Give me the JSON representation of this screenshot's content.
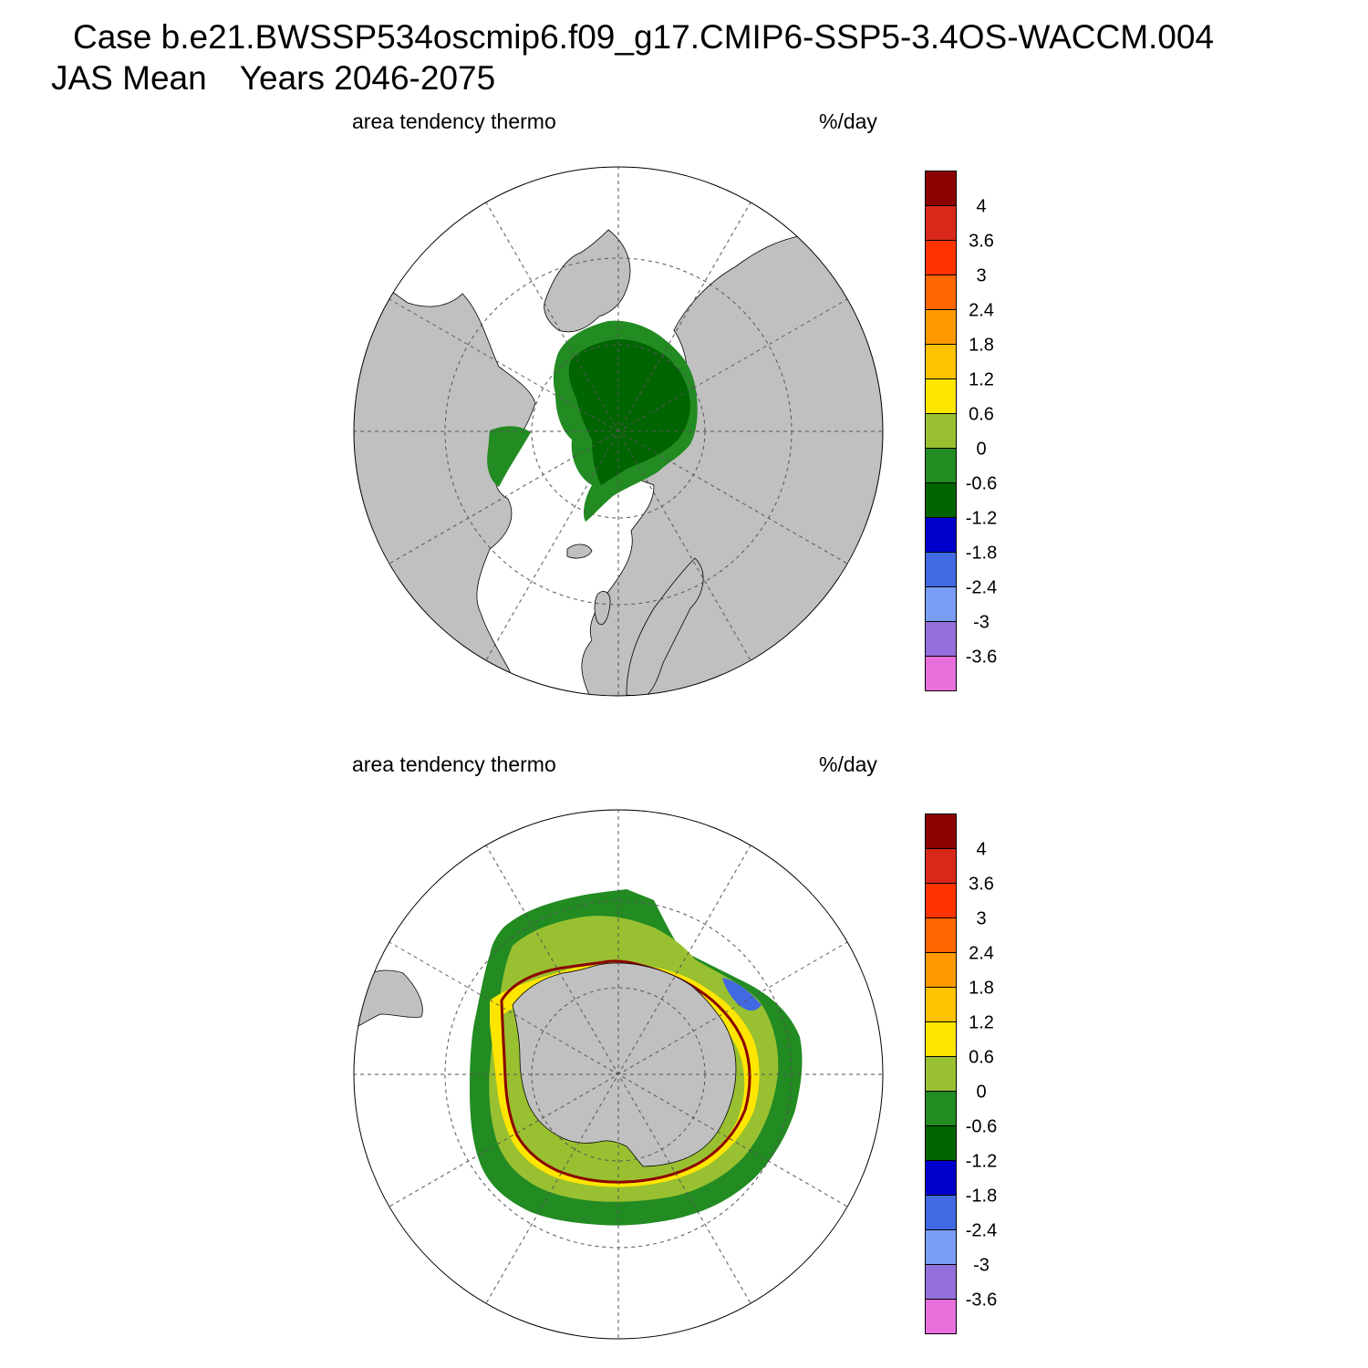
{
  "header": {
    "case_line": "Case b.e21.BWSSP534oscmip6.f09_g17.CMIP6-SSP5-3.4OS-WACCM.004",
    "period": "JAS Mean",
    "years": "Years 2046-2075"
  },
  "panels": [
    {
      "id": "north",
      "hemisphere": "Arctic (north polar stereographic)",
      "variable_label": "area tendency thermo",
      "units_label": "%/day"
    },
    {
      "id": "south",
      "hemisphere": "Antarctic (south polar stereographic)",
      "variable_label": "area tendency thermo",
      "units_label": "%/day"
    }
  ],
  "colorbar": {
    "tick_labels": [
      "4",
      "3.6",
      "3",
      "2.4",
      "1.8",
      "1.2",
      "0.6",
      "0",
      "-0.6",
      "-1.2",
      "-1.8",
      "-2.4",
      "-3",
      "-3.6"
    ],
    "colors_top_to_bottom": [
      "#8b0000",
      "#d9281a",
      "#ff3300",
      "#ff6600",
      "#ff9900",
      "#ffc200",
      "#ffe600",
      "#99c031",
      "#228b22",
      "#006400",
      "#0000cd",
      "#4169e1",
      "#7a9df5",
      "#9370db",
      "#e86fdc"
    ]
  },
  "colors": {
    "land": "#c0c0c0",
    "ocean": "#ffffff",
    "grid": "#555555"
  }
}
